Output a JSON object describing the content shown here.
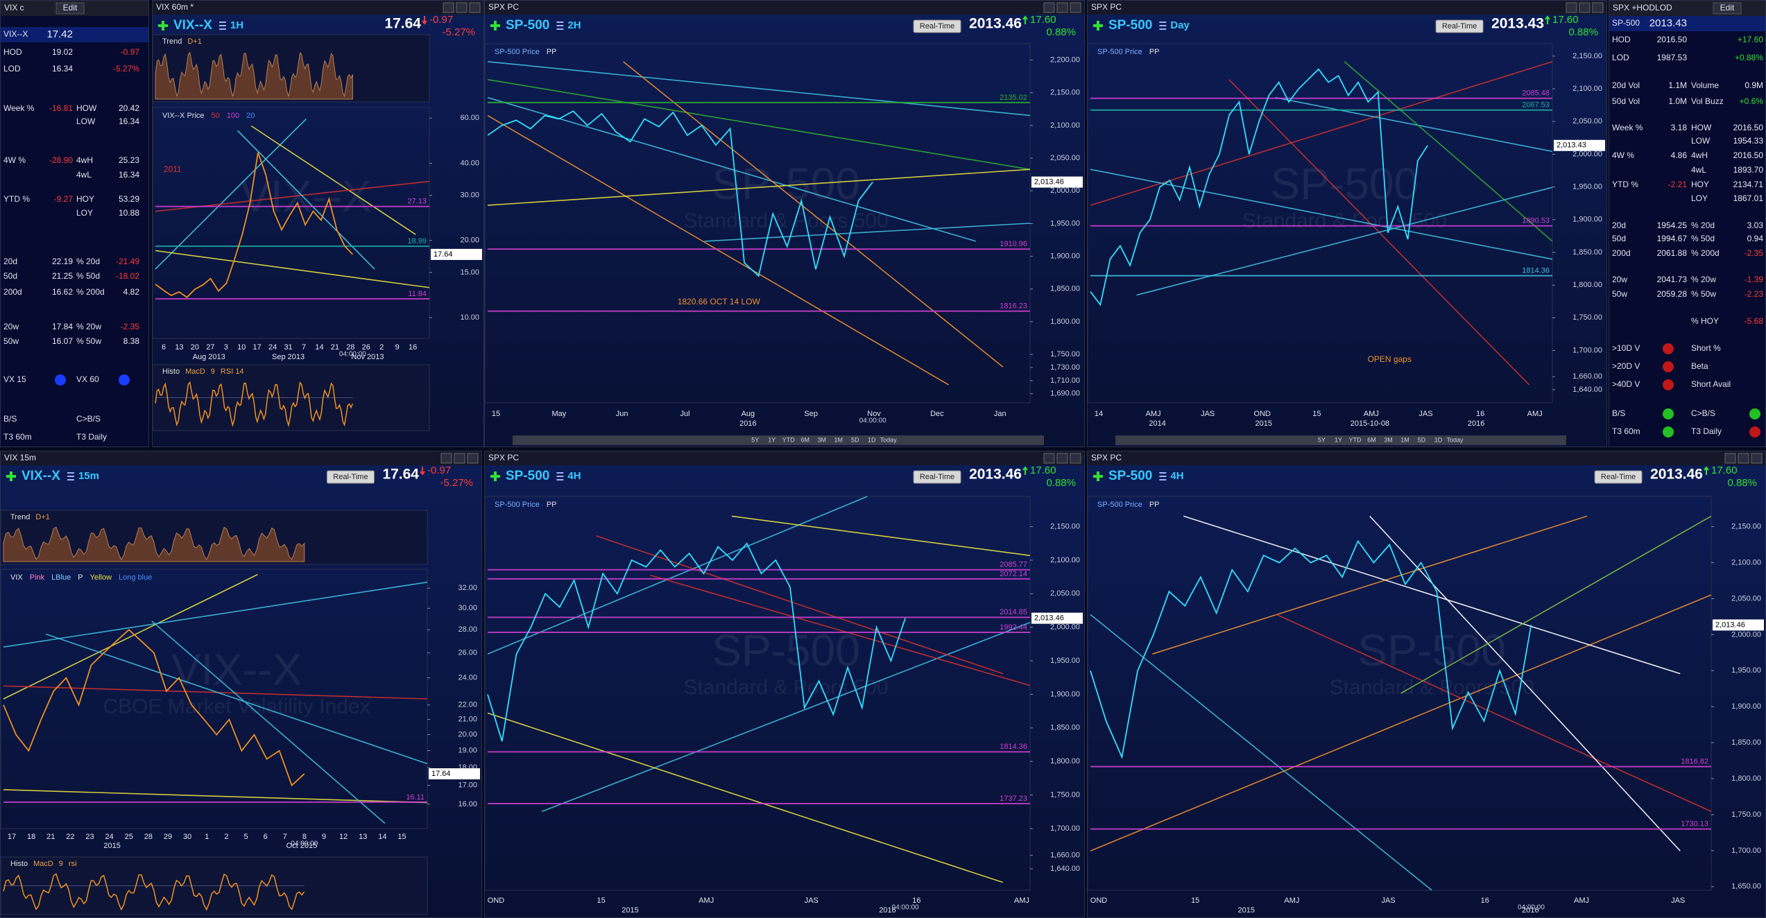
{
  "left_watchlist": {
    "title": "VIX c",
    "edit": "Edit",
    "rows": [
      {
        "l": "VIX--X",
        "v": "17.42"
      },
      {
        "l": "HOD",
        "v": "19.02",
        "v2": "-0.97"
      },
      {
        "l": "LOD",
        "v": "16.34",
        "v2": "-5.27%"
      },
      {
        "l": "Week  %",
        "v": "-16.81",
        "l2": "HOW",
        "v2": "20.42"
      },
      {
        "l2": "LOW",
        "v2": "16.34"
      },
      {
        "l": "4W %",
        "v": "-28.90",
        "l2": "4wH",
        "v2": "25.23"
      },
      {
        "l2": "4wL",
        "v2": "16.34"
      },
      {
        "l": "YTD %",
        "v": "-9.27",
        "l2": "HOY",
        "v2": "53.29"
      },
      {
        "l2": "LOY",
        "v2": "10.88"
      },
      {
        "l": "20d",
        "v": "22.19",
        "l2": "% 20d",
        "v2": "-21.49"
      },
      {
        "l": "50d",
        "v": "21.25",
        "l2": "% 50d",
        "v2": "-18.02"
      },
      {
        "l": "200d",
        "v": "16.62",
        "l2": "% 200d",
        "v2": "4.82"
      },
      {
        "l": "20w",
        "v": "17.84",
        "l2": "% 20w",
        "v2": "-2.35"
      },
      {
        "l": "50w",
        "v": "16.07",
        "l2": "% 50w",
        "v2": "8.38"
      },
      {
        "l": "VX 15",
        "l2": "VX 60",
        "d1": "#1a3cff",
        "d2": "#1a3cff"
      },
      {
        "l": "B/S",
        "l2": "C>B/S"
      },
      {
        "l": "T3 60m",
        "l2": "T3 Daily"
      }
    ]
  },
  "right_watchlist": {
    "title": "SPX +HODLOD",
    "edit": "Edit",
    "rows": [
      {
        "l": "SP-500",
        "v": "2013.43"
      },
      {
        "l": "HOD",
        "v": "2016.50",
        "v2": "+17.60"
      },
      {
        "l": "LOD",
        "v": "1987.53",
        "v2": "+0.88%"
      },
      {
        "l": "20d Vol",
        "v": "1.1M",
        "l2": "Volume",
        "v2": "0.9M"
      },
      {
        "l": "50d Vol",
        "v": "1.0M",
        "l2": "Vol Buzz",
        "v2": "+0.6%"
      },
      {
        "l": "Week  %",
        "v": "3.18",
        "l2": "HOW",
        "v2": "2016.50"
      },
      {
        "l2": "LOW",
        "v2": "1954.33"
      },
      {
        "l": "4W %",
        "v": "4.86",
        "l2": "4wH",
        "v2": "2016.50"
      },
      {
        "l2": "4wL",
        "v2": "1893.70"
      },
      {
        "l": "YTD %",
        "v": "-2.21",
        "l2": "HOY",
        "v2": "2134.71"
      },
      {
        "l2": "LOY",
        "v2": "1867.01"
      },
      {
        "l": "20d",
        "v": "1954.25",
        "l2": "% 20d",
        "v2": "3.03"
      },
      {
        "l": "50d",
        "v": "1994.67",
        "l2": "% 50d",
        "v2": "0.94"
      },
      {
        "l": "200d",
        "v": "2061.88",
        "l2": "% 200d",
        "v2": "-2.35"
      },
      {
        "l": "20w",
        "v": "2041.73",
        "l2": "% 20w",
        "v2": "-1.39"
      },
      {
        "l": "50w",
        "v": "2059.28",
        "l2": "% 50w",
        "v2": "-2.23"
      },
      {
        "l2": "% HOY",
        "v2": "-5.68"
      },
      {
        "l": ">10D V",
        "l2": "Short %",
        "d1": "#c01818"
      },
      {
        "l": ">20D V",
        "l2": "Beta",
        "d1": "#c01818"
      },
      {
        "l": ">40D V",
        "l2": "Short Avail",
        "d1": "#c01818"
      },
      {
        "l": "B/S",
        "l2": "C>B/S",
        "d1": "#22c022",
        "d2": "#22c022"
      },
      {
        "l": "T3 60m",
        "l2": "T3 Daily",
        "d1": "#22c022",
        "d2": "#c01818"
      }
    ]
  },
  "panels": [
    {
      "window": "VIX 60m *",
      "symbol": "VIX--X",
      "interval": "1H",
      "last": "17.64",
      "change": "-0.97",
      "change_pct": "-5.27%",
      "top_indicator": [
        "Trend",
        "D+1"
      ],
      "bottom_indicator": [
        "Histo",
        "MacD",
        "9",
        "RSI 14"
      ],
      "legend": [
        {
          "text": "VIX--X Price",
          "color": "#e0e0e0"
        },
        {
          "text": "50",
          "color": "#e03030"
        },
        {
          "text": "100",
          "color": "#d040d0"
        },
        {
          "text": "20",
          "color": "#4a8cff"
        }
      ],
      "watermark": [
        "VIX--X"
      ],
      "log": true,
      "ylim": [
        8.3,
        66
      ],
      "yticks": [
        {
          "value": 60,
          "label": "60.00"
        },
        {
          "value": 40,
          "label": "40.00"
        },
        {
          "value": 30,
          "label": "30.00"
        },
        {
          "value": 20,
          "label": "20.00"
        },
        {
          "value": 15,
          "label": "15.00"
        },
        {
          "value": 10,
          "label": "10.00"
        }
      ],
      "xticks": [
        "6",
        "13",
        "20",
        "27",
        "3",
        "10",
        "17",
        "24",
        "31",
        "7",
        "14",
        "21",
        "28",
        "26",
        "2",
        "9",
        "16"
      ],
      "date_labels": [
        "Aug 2013",
        "Sep 2013",
        "Nov 2013"
      ],
      "time": "04:00:00",
      "levels": [
        {
          "value": 27.13,
          "color": "#d040d0"
        },
        {
          "value": 18.99,
          "color": "#20b0a0"
        },
        {
          "value": 11.84,
          "color": "#d040d0"
        }
      ],
      "annotations": [
        "2011"
      ],
      "last_tag": "17.64",
      "color": "#f09020",
      "price": [
        13.5,
        12.8,
        12.2,
        12.6,
        12.0,
        12.9,
        13.4,
        14.2,
        12.7,
        13.6,
        16.8,
        21,
        28,
        44,
        36,
        26,
        22,
        25,
        28,
        23,
        26,
        24,
        29,
        22,
        19,
        17.64
      ]
    },
    {
      "window": "SPX PC",
      "symbol": "SP-500",
      "interval": "2H",
      "last": "2013.46",
      "change": "17.60",
      "change_pct": "0.88%",
      "button": "Real-Time",
      "legend": [
        {
          "text": "SP-500 Price",
          "color": "#7fb0ff"
        },
        {
          "text": "PP",
          "color": "#e0e0e0"
        }
      ],
      "watermark": [
        "SP-500",
        "Standard & Poors 500"
      ],
      "log": false,
      "ylim": [
        1676,
        2225
      ],
      "yticks": [
        {
          "value": 2200,
          "label": "2,200.00"
        },
        {
          "value": 2150,
          "label": "2,150.00"
        },
        {
          "value": 2100,
          "label": "2,100.00"
        },
        {
          "value": 2050,
          "label": "2,050.00"
        },
        {
          "value": 2000,
          "label": "2,000.00"
        },
        {
          "value": 1950,
          "label": "1,950.00"
        },
        {
          "value": 1900,
          "label": "1,900.00"
        },
        {
          "value": 1850,
          "label": "1,850.00"
        },
        {
          "value": 1800,
          "label": "1,800.00"
        },
        {
          "value": 1750,
          "label": "1,750.00"
        },
        {
          "value": 1730,
          "label": "1,730.00"
        },
        {
          "value": 1710,
          "label": "1,710.00"
        },
        {
          "value": 1690,
          "label": "1,690.00"
        }
      ],
      "xticks": [
        "15",
        "May",
        "Jun",
        "Jul",
        "Aug",
        "Sep",
        "Nov",
        "Dec",
        "Jan"
      ],
      "date_labels": [
        "2016"
      ],
      "time": "04:00:00",
      "levels": [
        {
          "value": 2135.02,
          "color": "#30b030"
        },
        {
          "value": 1910.96,
          "color": "#d040d0"
        },
        {
          "value": 1816.23,
          "color": "#d040d0"
        }
      ],
      "annotations": [
        "1820.66 OCT 14 LOW"
      ],
      "last_tag": "2,013.46",
      "color": "#30e0ff",
      "toolbar": [
        "5Y",
        "1Y",
        "YTD",
        "6M",
        "3M",
        "1M",
        "5D",
        "1D",
        "Today"
      ],
      "price": [
        2085,
        2100,
        2108,
        2095,
        2115,
        2110,
        2122,
        2100,
        2118,
        2090,
        2075,
        2110,
        2098,
        2120,
        2085,
        2100,
        2070,
        2095,
        1890,
        1870,
        1965,
        1915,
        1985,
        1880,
        1960,
        1900,
        1985,
        2013.46
      ]
    },
    {
      "window": "SPX PC",
      "symbol": "SP-500",
      "interval": "Day",
      "last": "2013.43",
      "change": "17.60",
      "change_pct": "0.88%",
      "button": "Real-Time",
      "legend": [
        {
          "text": "SP-500 Price",
          "color": "#7fb0ff"
        },
        {
          "text": "PP",
          "color": "#e0e0e0"
        }
      ],
      "watermark": [
        "SP-500",
        "Standard & Poors 500"
      ],
      "log": false,
      "ylim": [
        1620,
        2169
      ],
      "yticks": [
        {
          "value": 2150,
          "label": "2,150.00"
        },
        {
          "value": 2100,
          "label": "2,100.00"
        },
        {
          "value": 2050,
          "label": "2,050.00"
        },
        {
          "value": 2000,
          "label": "2,000.00"
        },
        {
          "value": 1950,
          "label": "1,950.00"
        },
        {
          "value": 1900,
          "label": "1,900.00"
        },
        {
          "value": 1850,
          "label": "1,850.00"
        },
        {
          "value": 1800,
          "label": "1,800.00"
        },
        {
          "value": 1750,
          "label": "1,750.00"
        },
        {
          "value": 1700,
          "label": "1,700.00"
        },
        {
          "value": 1660,
          "label": "1,660.00"
        },
        {
          "value": 1640,
          "label": "1,640.00"
        }
      ],
      "xticks": [
        "14",
        "AMJ",
        "JAS",
        "OND",
        "15",
        "AMJ",
        "JAS",
        "16",
        "AMJ"
      ],
      "date_labels": [
        "2014",
        "2015",
        "2015-10-08",
        "2016"
      ],
      "levels": [
        {
          "value": 2085.48,
          "color": "#d040d0"
        },
        {
          "value": 2067.53,
          "color": "#20b0a0"
        },
        {
          "value": 1890.53,
          "color": "#d040d0"
        },
        {
          "value": 1814.36,
          "color": "#40c0e0"
        }
      ],
      "annotations": [
        "OPEN gaps"
      ],
      "last_tag": "2,013.43",
      "color": "#30e0ff",
      "toolbar": [
        "5Y",
        "1Y",
        "YTD",
        "6M",
        "3M",
        "1M",
        "5D",
        "1D",
        "Today"
      ],
      "price": [
        1790,
        1770,
        1840,
        1860,
        1830,
        1880,
        1900,
        1950,
        1960,
        1930,
        1980,
        1920,
        1970,
        2000,
        2060,
        2080,
        2000,
        2050,
        2090,
        2110,
        2080,
        2100,
        2115,
        2130,
        2110,
        2120,
        2090,
        2110,
        2080,
        2095,
        1880,
        1920,
        1870,
        1990,
        2013.43
      ]
    },
    {
      "window": "VIX 15m",
      "symbol": "VIX--X",
      "interval": "15m",
      "last": "17.64",
      "change": "-0.97",
      "change_pct": "-5.27%",
      "button": "Real-Time",
      "top_indicator": [
        "Trend",
        "D+1"
      ],
      "bottom_indicator": [
        "Histo",
        "MacD",
        "9",
        "rsi"
      ],
      "legend": [
        {
          "text": "VIX",
          "color": "#e0e0e0"
        },
        {
          "text": "Pink",
          "color": "#ff80c0"
        },
        {
          "text": "LBlue",
          "color": "#80d0ff"
        },
        {
          "text": "P",
          "color": "#e0e0e0"
        },
        {
          "text": "Yellow",
          "color": "#e8e040"
        },
        {
          "text": "Long blue",
          "color": "#4a8cff"
        }
      ],
      "watermark": [
        "VIX--X",
        "CBOE Market Volatility Index"
      ],
      "log": true,
      "ylim": [
        14.8,
        34
      ],
      "yticks": [
        {
          "value": 32,
          "label": "32.00"
        },
        {
          "value": 30,
          "label": "30.00"
        },
        {
          "value": 28,
          "label": "28.00"
        },
        {
          "value": 26,
          "label": "26.00"
        },
        {
          "value": 24,
          "label": "24.00"
        },
        {
          "value": 22,
          "label": "22.00"
        },
        {
          "value": 21,
          "label": "21.00"
        },
        {
          "value": 20,
          "label": "20.00"
        },
        {
          "value": 19,
          "label": "19.00"
        },
        {
          "value": 18,
          "label": "18.00"
        },
        {
          "value": 17,
          "label": "17.00"
        },
        {
          "value": 16,
          "label": "16.00"
        }
      ],
      "xticks": [
        "17",
        "18",
        "21",
        "22",
        "23",
        "24",
        "25",
        "28",
        "29",
        "30",
        "1",
        "2",
        "5",
        "6",
        "7",
        "8",
        "9",
        "12",
        "13",
        "14",
        "15"
      ],
      "date_labels": [
        "2015",
        "Oct 2015"
      ],
      "time": "04:00:00",
      "levels": [
        {
          "value": 16.11,
          "color": "#d040d0"
        }
      ],
      "last_tag": "17.64",
      "color": "#f09020",
      "price": [
        22,
        20,
        19,
        21,
        23,
        24,
        22,
        25,
        26,
        27,
        28,
        27,
        26,
        23,
        24,
        22,
        21,
        20,
        21,
        19,
        20,
        18.5,
        19,
        17,
        17.64
      ]
    },
    {
      "window": "SPX PC",
      "symbol": "SP-500",
      "interval": "4H",
      "last": "2013.46",
      "change": "17.60",
      "change_pct": "0.88%",
      "button": "Real-Time",
      "legend": [
        {
          "text": "SP-500 Price",
          "color": "#7fb0ff"
        },
        {
          "text": "PP",
          "color": "#e0e0e0"
        }
      ],
      "watermark": [
        "SP-500",
        "Standard & Poors 500"
      ],
      "log": false,
      "ylim": [
        1608,
        2195
      ],
      "yticks": [
        {
          "value": 2150,
          "label": "2,150.00"
        },
        {
          "value": 2100,
          "label": "2,100.00"
        },
        {
          "value": 2050,
          "label": "2,050.00"
        },
        {
          "value": 2000,
          "label": "2,000.00"
        },
        {
          "value": 1950,
          "label": "1,950.00"
        },
        {
          "value": 1900,
          "label": "1,900.00"
        },
        {
          "value": 1850,
          "label": "1,850.00"
        },
        {
          "value": 1800,
          "label": "1,800.00"
        },
        {
          "value": 1750,
          "label": "1,750.00"
        },
        {
          "value": 1700,
          "label": "1,700.00"
        },
        {
          "value": 1660,
          "label": "1,660.00"
        },
        {
          "value": 1640,
          "label": "1,640.00"
        }
      ],
      "xticks": [
        "OND",
        "15",
        "AMJ",
        "JAS",
        "16",
        "AMJ"
      ],
      "date_labels": [
        "2015",
        "2016"
      ],
      "time": "04:00:00",
      "levels": [
        {
          "value": 2085.77,
          "color": "#d040d0"
        },
        {
          "value": 2072.14,
          "color": "#d040d0"
        },
        {
          "value": 2014.85,
          "color": "#d040d0"
        },
        {
          "value": 1992.44,
          "color": "#d040d0"
        },
        {
          "value": 1814.36,
          "color": "#d040d0"
        },
        {
          "value": 1737.23,
          "color": "#d040d0"
        }
      ],
      "last_tag": "2,013.46",
      "color": "#30e0ff",
      "price": [
        1900,
        1830,
        1960,
        2000,
        2050,
        2030,
        2070,
        2000,
        2080,
        2050,
        2100,
        2090,
        2115,
        2090,
        2110,
        2080,
        2120,
        2100,
        2125,
        2080,
        2100,
        2060,
        1880,
        1920,
        1870,
        1940,
        1880,
        2000,
        1950,
        2013.46
      ]
    },
    {
      "window": "SPX PC",
      "symbol": "SP-500",
      "interval": "4H",
      "last": "2013.46",
      "change": "17.60",
      "change_pct": "0.88%",
      "button": "Real-Time",
      "legend": [
        {
          "text": "SP-500 Price",
          "color": "#7fb0ff"
        },
        {
          "text": "PP",
          "color": "#e0e0e0"
        }
      ],
      "watermark": [
        "SP-500",
        "Standard & Poors 500"
      ],
      "log": false,
      "ylim": [
        1645,
        2192
      ],
      "yticks": [
        {
          "value": 2150,
          "label": "2,150.00"
        },
        {
          "value": 2100,
          "label": "2,100.00"
        },
        {
          "value": 2050,
          "label": "2,050.00"
        },
        {
          "value": 2000,
          "label": "2,000.00"
        },
        {
          "value": 1950,
          "label": "1,950.00"
        },
        {
          "value": 1900,
          "label": "1,900.00"
        },
        {
          "value": 1850,
          "label": "1,850.00"
        },
        {
          "value": 1800,
          "label": "1,800.00"
        },
        {
          "value": 1750,
          "label": "1,750.00"
        },
        {
          "value": 1700,
          "label": "1,700.00"
        },
        {
          "value": 1650,
          "label": "1,650.00"
        }
      ],
      "xticks": [
        "OND",
        "15",
        "AMJ",
        "JAS",
        "16",
        "AMJ",
        "JAS"
      ],
      "date_labels": [
        "2015",
        "2016"
      ],
      "time": "04:00:00",
      "levels": [
        {
          "value": 1816.82,
          "color": "#d040d0"
        },
        {
          "value": 1730.13,
          "color": "#d040d0"
        }
      ],
      "last_tag": "2,013.46",
      "color": "#30e0ff",
      "price": [
        1950,
        1880,
        1830,
        1950,
        2000,
        2060,
        2040,
        2080,
        2030,
        2090,
        2060,
        2110,
        2100,
        2120,
        2100,
        2110,
        2080,
        2130,
        2100,
        2125,
        2070,
        2100,
        2060,
        1870,
        1920,
        1880,
        1950,
        1890,
        2013.46
      ]
    }
  ]
}
